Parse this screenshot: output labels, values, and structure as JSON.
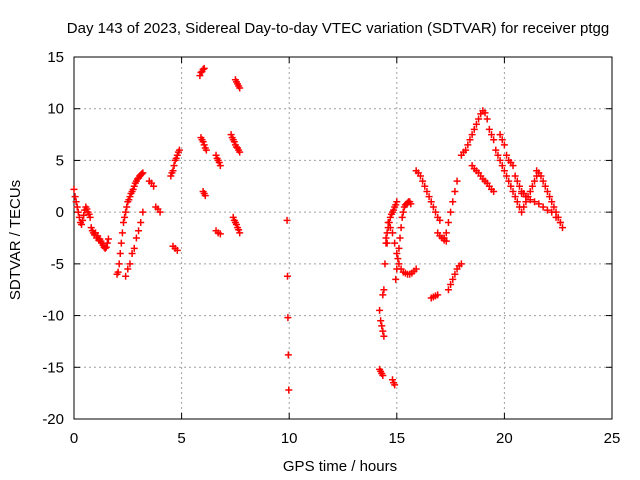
{
  "chart_data": {
    "type": "scatter",
    "title": "Day 143 of 2023, Sidereal Day-to-day VTEC variation (SDTVAR) for receiver ptgg",
    "xlabel": "GPS time / hours",
    "ylabel": "SDTVAR / TECUs",
    "xlim": [
      0,
      25
    ],
    "ylim": [
      -20,
      15
    ],
    "xticks": [
      0,
      5,
      10,
      15,
      20,
      25
    ],
    "yticks": [
      -20,
      -15,
      -10,
      -5,
      0,
      5,
      10,
      15
    ],
    "xtick_labels": [
      "0",
      "5",
      "10",
      "15",
      "20",
      "25"
    ],
    "ytick_labels": [
      "-20",
      "-15",
      "-10",
      "-5",
      "0",
      "5",
      "10",
      "15"
    ],
    "grid": true,
    "marker": "+",
    "color": "#ff0000",
    "series": [
      {
        "name": "SDTVAR",
        "x": [
          0.0,
          0.05,
          0.1,
          0.15,
          0.2,
          0.25,
          0.3,
          0.35,
          0.4,
          0.45,
          0.5,
          0.55,
          0.6,
          0.65,
          0.7,
          0.75,
          0.8,
          0.85,
          0.9,
          0.95,
          1.0,
          1.05,
          1.1,
          1.15,
          1.2,
          1.25,
          1.3,
          1.35,
          1.4,
          1.45,
          1.5,
          1.55,
          1.6,
          2.0,
          2.05,
          2.1,
          2.15,
          2.2,
          2.25,
          2.3,
          2.35,
          2.4,
          2.45,
          2.5,
          2.55,
          2.6,
          2.65,
          2.7,
          2.75,
          2.8,
          2.85,
          2.9,
          2.95,
          3.0,
          3.05,
          3.1,
          3.15,
          3.2,
          2.4,
          2.5,
          2.6,
          2.7,
          2.8,
          2.9,
          3.0,
          3.1,
          3.2,
          3.5,
          3.6,
          3.7,
          3.8,
          3.9,
          4.0,
          4.5,
          4.55,
          4.6,
          4.65,
          4.7,
          4.75,
          4.8,
          4.85,
          4.9,
          4.6,
          4.7,
          4.8,
          5.85,
          5.9,
          5.95,
          6.0,
          6.05,
          5.9,
          5.95,
          6.0,
          6.05,
          6.1,
          6.15,
          6.0,
          6.05,
          6.1,
          6.6,
          6.65,
          6.7,
          6.75,
          6.8,
          6.6,
          6.7,
          6.8,
          7.3,
          7.35,
          7.4,
          7.45,
          7.5,
          7.55,
          7.6,
          7.65,
          7.7,
          7.5,
          7.55,
          7.6,
          7.65,
          7.7,
          7.4,
          7.45,
          7.5,
          7.55,
          7.6,
          7.65,
          7.7,
          9.9,
          9.92,
          9.94,
          9.96,
          9.98,
          14.2,
          14.25,
          14.3,
          14.35,
          14.4,
          14.2,
          14.25,
          14.3,
          14.35,
          14.35,
          14.4,
          14.45,
          14.5,
          14.55,
          14.6,
          14.65,
          14.7,
          14.75,
          14.8,
          14.85,
          14.9,
          14.95,
          15.0,
          14.8,
          14.85,
          14.9,
          14.95,
          15.0,
          15.05,
          15.1,
          15.15,
          15.2,
          15.25,
          15.3,
          15.35,
          15.4,
          15.45,
          15.5,
          15.55,
          15.6,
          15.65,
          14.5,
          14.55,
          14.6,
          14.7,
          14.8,
          14.9,
          15.0,
          15.1,
          15.2,
          15.3,
          15.4,
          15.5,
          15.6,
          15.7,
          15.8,
          15.9,
          15.9,
          16.0,
          16.1,
          16.2,
          16.3,
          16.4,
          16.5,
          16.6,
          16.7,
          16.8,
          16.9,
          17.0,
          16.6,
          16.7,
          16.8,
          16.9,
          16.9,
          17.0,
          17.1,
          17.2,
          17.3,
          17.4,
          17.5,
          17.6,
          17.7,
          17.8,
          17.9,
          18.0,
          17.2,
          17.3,
          17.4,
          17.5,
          17.6,
          17.7,
          17.8,
          18.0,
          18.1,
          18.2,
          18.3,
          18.4,
          18.5,
          18.6,
          18.7,
          18.8,
          18.9,
          19.0,
          19.1,
          19.2,
          19.3,
          19.4,
          19.5,
          18.5,
          18.6,
          18.7,
          18.8,
          18.9,
          19.0,
          19.1,
          19.2,
          19.3,
          19.4,
          19.5,
          19.6,
          19.7,
          19.8,
          19.9,
          20.0,
          20.1,
          20.2,
          20.3,
          20.4,
          20.5,
          20.6,
          20.7,
          20.8,
          20.9,
          21.0,
          21.1,
          21.2,
          21.3,
          21.4,
          21.5,
          19.8,
          19.9,
          20.0,
          20.1,
          20.2,
          20.3,
          20.4,
          20.5,
          20.6,
          20.7,
          20.8,
          20.9,
          21.0,
          21.5,
          21.6,
          21.7,
          21.8,
          21.9,
          22.0,
          22.1,
          22.2,
          22.3,
          22.4,
          22.5,
          22.6,
          22.7,
          20.8,
          21.0,
          21.2,
          21.4,
          21.6,
          21.8,
          22.0,
          22.2,
          22.4,
          22.6
        ],
        "y": [
          2.2,
          1.5,
          1.0,
          0.5,
          0.0,
          -0.5,
          -1.0,
          -1.2,
          -0.8,
          -0.3,
          0.2,
          0.5,
          0.3,
          0.0,
          -0.2,
          -0.5,
          -1.5,
          -1.8,
          -2.0,
          -2.2,
          -2.0,
          -2.5,
          -2.3,
          -2.7,
          -2.6,
          -2.8,
          -3.0,
          -3.2,
          -3.4,
          -3.5,
          -3.4,
          -3.0,
          -2.6,
          -6.0,
          -5.8,
          -5.0,
          -4.0,
          -3.0,
          -2.0,
          -1.0,
          -0.5,
          0.0,
          0.5,
          1.0,
          1.2,
          1.5,
          1.8,
          2.0,
          2.2,
          2.5,
          2.8,
          3.0,
          3.2,
          3.3,
          3.5,
          3.6,
          3.7,
          3.8,
          -6.2,
          -5.5,
          -5.0,
          -4.0,
          -3.5,
          -2.5,
          -1.8,
          -1.0,
          0.0,
          3.0,
          2.8,
          2.5,
          0.5,
          0.3,
          0.0,
          3.5,
          3.8,
          4.0,
          4.5,
          5.0,
          5.2,
          5.5,
          5.8,
          6.0,
          -3.3,
          -3.5,
          -3.7,
          13.2,
          13.5,
          13.6,
          13.8,
          13.9,
          7.2,
          7.0,
          6.8,
          6.5,
          6.2,
          6.0,
          2.0,
          1.8,
          1.6,
          5.5,
          5.2,
          5.0,
          4.8,
          4.5,
          -1.8,
          -2.0,
          -2.1,
          7.5,
          7.2,
          7.0,
          6.8,
          6.5,
          6.3,
          6.2,
          6.0,
          5.8,
          12.8,
          12.6,
          12.4,
          12.2,
          12.0,
          -0.5,
          -0.8,
          -1.0,
          -1.2,
          -1.5,
          -1.7,
          -2.0,
          -0.8,
          -6.2,
          -10.2,
          -13.8,
          -17.2,
          -9.5,
          -10.5,
          -11.0,
          -11.5,
          -12.0,
          -15.2,
          -15.4,
          -15.6,
          -15.8,
          -8.0,
          -7.5,
          -5.0,
          -3.0,
          -2.0,
          -1.5,
          -1.0,
          -0.5,
          -0.2,
          0.0,
          0.2,
          0.5,
          0.7,
          1.0,
          -16.2,
          -16.5,
          -16.7,
          -6.5,
          -5.5,
          -4.5,
          -3.5,
          -2.5,
          -1.5,
          -0.5,
          0.0,
          0.5,
          0.7,
          0.8,
          0.9,
          1.0,
          1.0,
          0.8,
          -2.5,
          -3.0,
          -1.0,
          -1.5,
          -2.0,
          -3.0,
          -4.0,
          -5.0,
          -5.5,
          -5.8,
          -5.9,
          -6.0,
          -6.0,
          -5.9,
          -5.7,
          -5.5,
          4.0,
          3.8,
          3.5,
          3.0,
          2.5,
          2.0,
          1.5,
          1.0,
          0.5,
          0.0,
          -0.5,
          -0.8,
          -8.3,
          -8.2,
          -8.1,
          -8.0,
          -2.0,
          -2.3,
          -2.5,
          -2.7,
          -2.8,
          -7.5,
          -7.0,
          -6.5,
          -6.0,
          -5.5,
          -5.2,
          -5.0,
          -2.5,
          -2.0,
          -1.0,
          0.0,
          1.0,
          2.0,
          3.0,
          5.5,
          5.8,
          6.0,
          6.5,
          7.0,
          7.5,
          8.0,
          8.5,
          9.0,
          9.5,
          9.8,
          9.6,
          9.0,
          8.0,
          7.5,
          7.0,
          4.5,
          4.2,
          4.0,
          3.8,
          3.5,
          3.2,
          3.0,
          2.8,
          2.5,
          2.2,
          2.0,
          6.0,
          5.5,
          5.0,
          4.5,
          4.0,
          3.5,
          3.0,
          2.5,
          2.0,
          1.5,
          1.0,
          0.5,
          0.0,
          0.5,
          1.0,
          1.5,
          2.0,
          2.5,
          3.0,
          3.5,
          7.5,
          7.0,
          6.5,
          5.5,
          5.0,
          4.8,
          4.5,
          3.5,
          3.0,
          2.5,
          2.0,
          1.8,
          1.5,
          4.0,
          3.8,
          3.5,
          3.0,
          2.5,
          2.0,
          1.5,
          1.0,
          0.5,
          0.0,
          -0.5,
          -1.0,
          -1.5,
          1.8,
          1.5,
          1.2,
          1.0,
          0.8,
          0.5,
          0.2,
          0.0,
          -0.5,
          -1.0
        ]
      }
    ]
  }
}
